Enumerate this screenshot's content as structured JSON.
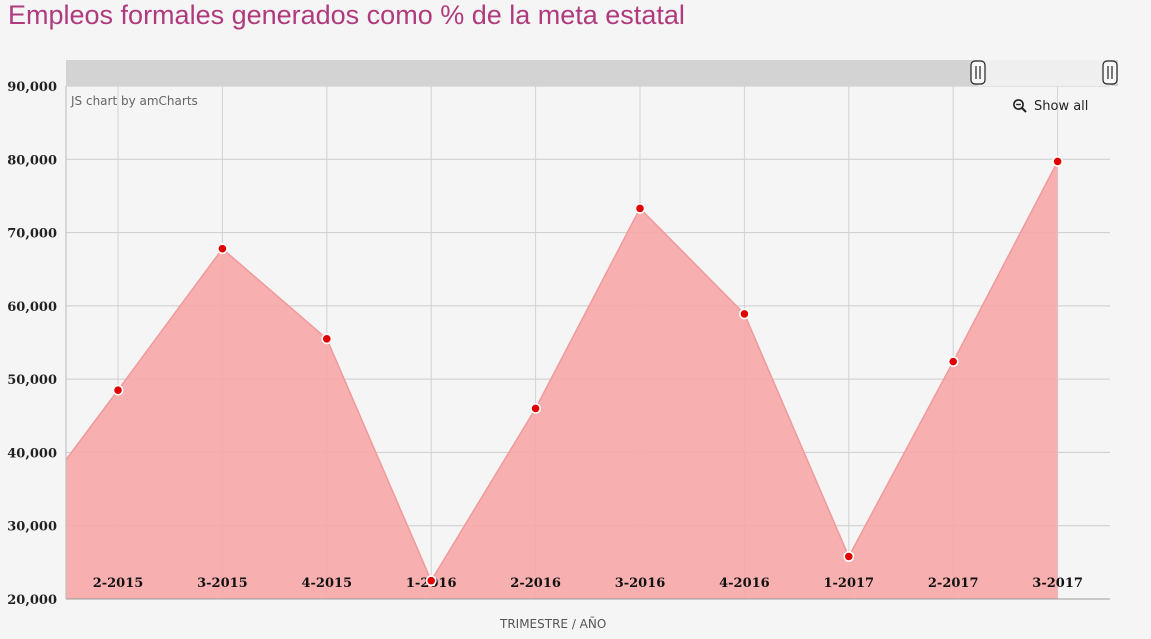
{
  "title": "Empleos formales generados como % de la meta estatal",
  "credit": "JS chart by amCharts",
  "show_all": "Show all",
  "colors": {
    "title": "#b03a7e",
    "area_fill": "#f8a7a9",
    "line": "#f09a9c",
    "bullet": "#e00000",
    "scrollbar": "#d3d3d3"
  },
  "chart_data": {
    "type": "area",
    "title": "Empleos formales generados como % de la meta estatal",
    "xlabel": "TRIMESTRE / AÑO",
    "ylabel": "",
    "categories": [
      "2-2015",
      "3-2015",
      "4-2015",
      "1-2016",
      "2-2016",
      "3-2016",
      "4-2016",
      "1-2017",
      "2-2017",
      "3-2017"
    ],
    "values": [
      48500,
      67800,
      55500,
      22500,
      46000,
      73300,
      58900,
      25800,
      52400,
      79700
    ],
    "left_edge_value": 39000,
    "yticks": [
      20000,
      30000,
      40000,
      50000,
      60000,
      70000,
      80000,
      90000
    ],
    "ytick_labels": [
      "20,000",
      "30,000",
      "40,000",
      "50,000",
      "60,000",
      "70,000",
      "80,000",
      "90,000"
    ],
    "ylim": [
      20000,
      90000
    ],
    "grid": true,
    "legend": "none"
  }
}
